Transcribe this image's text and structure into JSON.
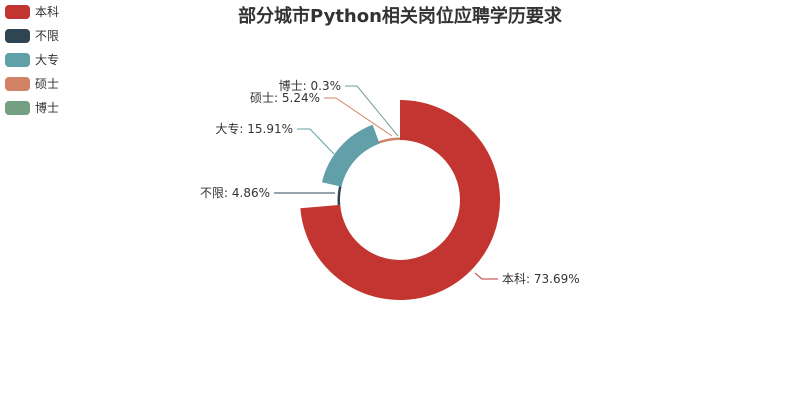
{
  "chart_data": {
    "type": "pie",
    "variant": "donut",
    "title": "部分城市Python相关岗位应聘学历要求",
    "legend_position": "top-left",
    "slices": [
      {
        "name": "本科",
        "value": 73.69,
        "label": "本科: 73.69%",
        "color": "#c23531",
        "display_radius": "full"
      },
      {
        "name": "不限",
        "value": 4.86,
        "label": "不限: 4.86%",
        "color": "#2f4554",
        "display_radius": "thin"
      },
      {
        "name": "大专",
        "value": 15.91,
        "label": "大专: 15.91%",
        "color": "#61a0a8",
        "display_radius": "mid"
      },
      {
        "name": "硕士",
        "value": 5.24,
        "label": "硕士: 5.24%",
        "color": "#d48265",
        "display_radius": "thin"
      },
      {
        "name": "博士",
        "value": 0.3,
        "label": "博士: 0.3%",
        "color": "#749f83",
        "display_radius": "thin"
      }
    ]
  }
}
